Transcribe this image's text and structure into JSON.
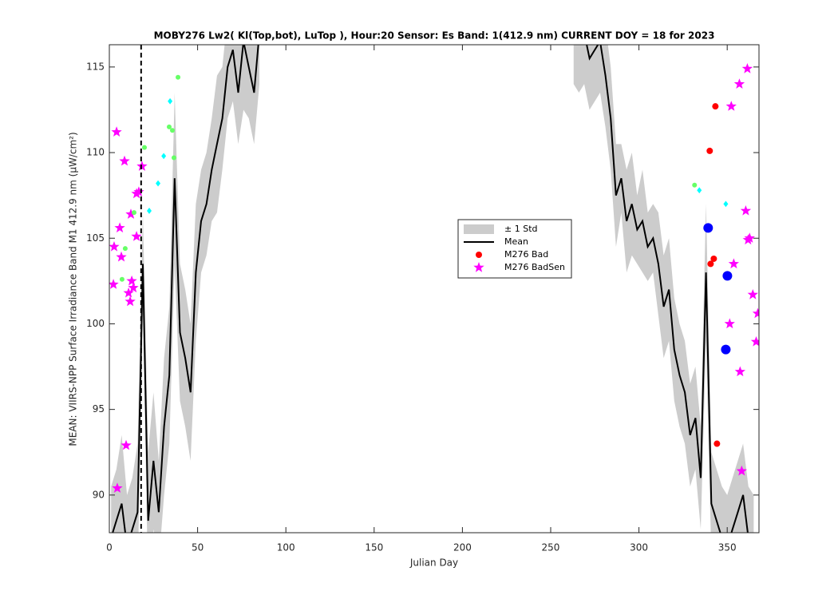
{
  "chart_data": {
    "type": "line",
    "title": "MOBY276   Lw2( Kl(Top,bot), LuTop ),   Hour:20 Sensor: Es Band: 1(412.9 nm)   CURRENT DOY = 18 for 2023",
    "xlabel": "Julian Day",
    "ylabel": "MEAN: VIIRS-NPP Surface Irradiance Band M1 412.9 nm (µW/cm²)",
    "xlim": [
      0,
      368
    ],
    "ylim": [
      87.8,
      116.3
    ],
    "xticks": [
      0,
      50,
      100,
      150,
      200,
      250,
      300,
      350
    ],
    "yticks": [
      90,
      95,
      100,
      105,
      110,
      115
    ],
    "current_doy": 18,
    "x": [
      1,
      4,
      7,
      10,
      13,
      16,
      19,
      22,
      25,
      28,
      31,
      34,
      37,
      40,
      43,
      46,
      49,
      52,
      55,
      58,
      61,
      64,
      67,
      70,
      73,
      76,
      79,
      82,
      85,
      174,
      263,
      266,
      269,
      272,
      275,
      278,
      281,
      284,
      287,
      290,
      293,
      296,
      299,
      302,
      305,
      308,
      311,
      314,
      317,
      320,
      323,
      326,
      329,
      332,
      335,
      338,
      341,
      344,
      347,
      350,
      353,
      356,
      359,
      362,
      365
    ],
    "series": [
      {
        "name": "± 1 Std",
        "type": "band",
        "color": "#cccccc",
        "values": [
          3,
          3,
          4,
          3,
          3,
          4,
          3,
          4,
          4,
          3,
          4,
          4,
          5,
          4,
          4,
          4,
          4,
          3,
          3,
          3,
          4,
          3,
          3,
          3,
          3,
          4,
          3,
          3,
          3,
          null,
          3,
          3,
          3,
          3,
          3,
          3,
          3,
          3,
          3,
          2,
          3,
          3,
          2,
          3,
          2,
          2,
          3,
          3,
          3,
          3,
          3,
          3,
          3,
          3,
          3,
          4,
          3,
          3,
          3,
          3,
          3,
          3,
          3,
          3,
          3
        ]
      },
      {
        "name": "Mean",
        "type": "line",
        "color": "#000000",
        "values": [
          87.5,
          88.5,
          89.5,
          87.0,
          88.0,
          89.0,
          103.5,
          88.5,
          92.0,
          89.0,
          94.0,
          97.0,
          108.5,
          99.5,
          98.0,
          96.0,
          103.0,
          106.0,
          107.0,
          109.0,
          110.5,
          112.0,
          115.0,
          116.0,
          113.5,
          116.5,
          115.0,
          113.5,
          117.0,
          null,
          117.0,
          116.5,
          117.0,
          115.5,
          116.0,
          116.5,
          114.5,
          112.0,
          107.5,
          108.5,
          106.0,
          107.0,
          105.5,
          106.0,
          104.5,
          105.0,
          103.5,
          101.0,
          102.0,
          98.5,
          97.0,
          96.0,
          93.5,
          94.5,
          91.0,
          103.0,
          89.5,
          88.5,
          87.5,
          87.0,
          88.0,
          89.0,
          90.0,
          87.5,
          87.0
        ]
      },
      {
        "name": "M276 Bad",
        "type": "scatter",
        "marker": "circle",
        "size": 4,
        "color": "#ff0000",
        "x": [
          343.3,
          340.1,
          342.4,
          340.6,
          344.2
        ],
        "values": [
          112.7,
          110.1,
          103.8,
          103.5,
          93.0
        ]
      },
      {
        "name": "M276 BadSen",
        "type": "scatter",
        "marker": "star",
        "size": 7,
        "color": "#ff00ff",
        "x": [
          4.1,
          8.6,
          18.5,
          16.7,
          15.4,
          12.2,
          5.9,
          15.4,
          2.7,
          6.8,
          12.7,
          2.3,
          13.6,
          10.9,
          11.8,
          9.5,
          4.5,
          361.4,
          356.9,
          352.3,
          360.5,
          362.7,
          361.8,
          353.7,
          364.5,
          367.3,
          351.4,
          366.4,
          357.3,
          358.2
        ],
        "values": [
          111.2,
          109.5,
          109.2,
          107.7,
          107.6,
          106.4,
          105.6,
          105.1,
          104.5,
          103.9,
          102.5,
          102.3,
          102.1,
          101.8,
          101.3,
          92.9,
          90.4,
          114.9,
          114.0,
          112.7,
          106.6,
          105.0,
          104.9,
          103.5,
          101.7,
          100.6,
          100.0,
          98.95,
          97.2,
          91.4
        ]
      },
      {
        "type": "scatter",
        "marker": "circle",
        "size": 6,
        "color": "#0000ff",
        "x": [
          339.2,
          350.1,
          349.2
        ],
        "values": [
          105.6,
          102.8,
          98.5
        ]
      },
      {
        "type": "scatter",
        "marker": "diamond",
        "size": 3,
        "color": "#00ffff",
        "x": [
          34.4,
          30.8,
          27.6,
          22.6,
          334.2,
          349.2
        ],
        "values": [
          113.0,
          109.8,
          108.2,
          106.6,
          107.8,
          107.0
        ]
      },
      {
        "type": "scatter",
        "marker": "circle",
        "size": 3,
        "color": "#66ff66",
        "x": [
          38.9,
          33.9,
          35.7,
          19.9,
          36.6,
          14.0,
          9.0,
          7.2,
          331.5
        ],
        "values": [
          114.4,
          111.5,
          111.3,
          110.3,
          109.7,
          106.5,
          104.4,
          102.6,
          108.1
        ]
      }
    ]
  }
}
